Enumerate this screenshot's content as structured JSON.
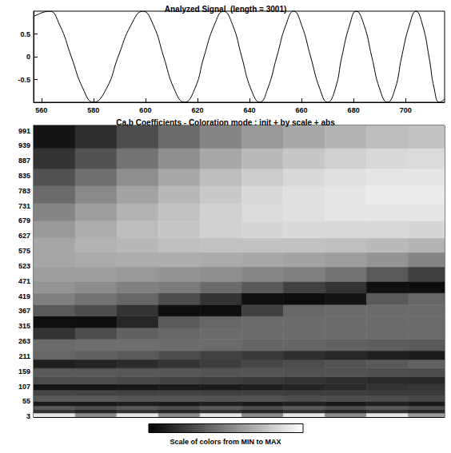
{
  "chart_data": [
    {
      "type": "line",
      "title": "Analyzed Signal  (length = 3001)",
      "x": [
        557,
        563,
        567,
        571.5,
        576,
        580,
        585,
        589.5,
        594.5,
        599,
        603,
        607,
        611,
        615,
        619,
        622.5,
        626.5,
        630,
        633.5,
        637,
        640.5,
        644,
        647,
        650.5,
        654,
        657,
        660,
        663.5,
        667,
        670,
        673,
        675.5,
        678.5,
        681,
        684,
        687,
        690,
        693,
        696,
        698.5,
        701.5,
        704,
        706.5,
        709,
        711,
        713,
        715
      ],
      "values": [
        0.88,
        1,
        0.7,
        0,
        -0.7,
        -1,
        -0.7,
        0,
        0.7,
        1,
        0.7,
        0,
        -0.7,
        -1,
        -0.7,
        0,
        0.7,
        1,
        0.7,
        0,
        -0.7,
        -1,
        -0.7,
        0,
        0.7,
        1,
        0.7,
        0,
        -0.7,
        -1,
        -0.7,
        0,
        0.7,
        1,
        0.7,
        0,
        -0.7,
        -1,
        -0.7,
        0,
        0.7,
        1,
        0.7,
        0,
        -0.7,
        -1,
        -0.93
      ],
      "color": "#000000",
      "xlim": [
        557,
        715
      ],
      "ylim": [
        -1,
        1
      ],
      "xticks": [
        560,
        580,
        600,
        620,
        640,
        660,
        680,
        700
      ],
      "yticks": [
        -0.5,
        0,
        0.5
      ]
    },
    {
      "type": "heatmap",
      "title": "Ca,b Coefficients - Coloration mode : init + by scale + abs",
      "x_edges": [
        557,
        573,
        589,
        605,
        621,
        637,
        653,
        669,
        685,
        701,
        715
      ],
      "y_edges": [
        1,
        15,
        27,
        40,
        55,
        75,
        95,
        115,
        140,
        170,
        200,
        230,
        270,
        310,
        350,
        390,
        430,
        470,
        520,
        570,
        620,
        680,
        740,
        800,
        860,
        930,
        1009
      ],
      "cells": [
        [
          0.9,
          0.55,
          0.9,
          0.55,
          0.9,
          0.55,
          0.9,
          0.55,
          0.9,
          0.6
        ],
        [
          0.2,
          0.15,
          0.2,
          0.15,
          0.2,
          0.15,
          0.2,
          0.15,
          0.2,
          0.15
        ],
        [
          0.35,
          0.3,
          0.35,
          0.3,
          0.35,
          0.3,
          0.35,
          0.3,
          0.35,
          0.3
        ],
        [
          0.1,
          0.1,
          0.12,
          0.1,
          0.12,
          0.1,
          0.12,
          0.1,
          0.12,
          0.1
        ],
        [
          0.35,
          0.35,
          0.33,
          0.33,
          0.32,
          0.32,
          0.3,
          0.3,
          0.3,
          0.28
        ],
        [
          0.28,
          0.27,
          0.26,
          0.26,
          0.25,
          0.25,
          0.24,
          0.24,
          0.23,
          0.23
        ],
        [
          0.08,
          0.08,
          0.09,
          0.1,
          0.1,
          0.12,
          0.14,
          0.16,
          0.2,
          0.22
        ],
        [
          0.3,
          0.3,
          0.28,
          0.26,
          0.24,
          0.22,
          0.2,
          0.18,
          0.16,
          0.15
        ],
        [
          0.35,
          0.35,
          0.34,
          0.34,
          0.33,
          0.33,
          0.32,
          0.32,
          0.31,
          0.3
        ],
        [
          0.12,
          0.14,
          0.17,
          0.2,
          0.24,
          0.28,
          0.3,
          0.33,
          0.35,
          0.38
        ],
        [
          0.4,
          0.38,
          0.35,
          0.3,
          0.26,
          0.22,
          0.18,
          0.15,
          0.12,
          0.1
        ],
        [
          0.42,
          0.43,
          0.43,
          0.42,
          0.42,
          0.4,
          0.4,
          0.38,
          0.36,
          0.35
        ],
        [
          0.2,
          0.3,
          0.38,
          0.4,
          0.42,
          0.42,
          0.42,
          0.42,
          0.42,
          0.42
        ],
        [
          0.06,
          0.05,
          0.15,
          0.35,
          0.4,
          0.42,
          0.42,
          0.42,
          0.42,
          0.42
        ],
        [
          0.35,
          0.3,
          0.2,
          0.05,
          0.05,
          0.25,
          0.4,
          0.42,
          0.42,
          0.42
        ],
        [
          0.5,
          0.45,
          0.4,
          0.3,
          0.2,
          0.06,
          0.05,
          0.08,
          0.35,
          0.4
        ],
        [
          0.58,
          0.55,
          0.5,
          0.48,
          0.42,
          0.35,
          0.25,
          0.2,
          0.06,
          0.05
        ],
        [
          0.62,
          0.62,
          0.6,
          0.58,
          0.56,
          0.53,
          0.5,
          0.45,
          0.35,
          0.25
        ],
        [
          0.65,
          0.67,
          0.68,
          0.68,
          0.67,
          0.66,
          0.64,
          0.62,
          0.58,
          0.52
        ],
        [
          0.65,
          0.7,
          0.72,
          0.75,
          0.76,
          0.76,
          0.76,
          0.75,
          0.73,
          0.7
        ],
        [
          0.6,
          0.68,
          0.74,
          0.78,
          0.82,
          0.84,
          0.85,
          0.85,
          0.85,
          0.84
        ],
        [
          0.52,
          0.62,
          0.7,
          0.76,
          0.82,
          0.86,
          0.88,
          0.9,
          0.9,
          0.9
        ],
        [
          0.42,
          0.54,
          0.64,
          0.72,
          0.79,
          0.85,
          0.88,
          0.9,
          0.92,
          0.92
        ],
        [
          0.32,
          0.44,
          0.56,
          0.66,
          0.74,
          0.8,
          0.85,
          0.88,
          0.9,
          0.9
        ],
        [
          0.2,
          0.32,
          0.45,
          0.56,
          0.66,
          0.73,
          0.78,
          0.82,
          0.85,
          0.86
        ],
        [
          0.08,
          0.18,
          0.3,
          0.42,
          0.52,
          0.6,
          0.66,
          0.7,
          0.74,
          0.76
        ]
      ],
      "xlim": [
        557,
        715
      ],
      "ylim": [
        1,
        1009
      ],
      "yticks": [
        3,
        55,
        107,
        159,
        211,
        263,
        315,
        367,
        419,
        471,
        523,
        575,
        627,
        679,
        731,
        783,
        835,
        887,
        939,
        991
      ],
      "tick_labels": "y",
      "colorbar_range": [
        0,
        1
      ],
      "colorbar_label": "Scale of colors from MIN to MAX"
    }
  ]
}
